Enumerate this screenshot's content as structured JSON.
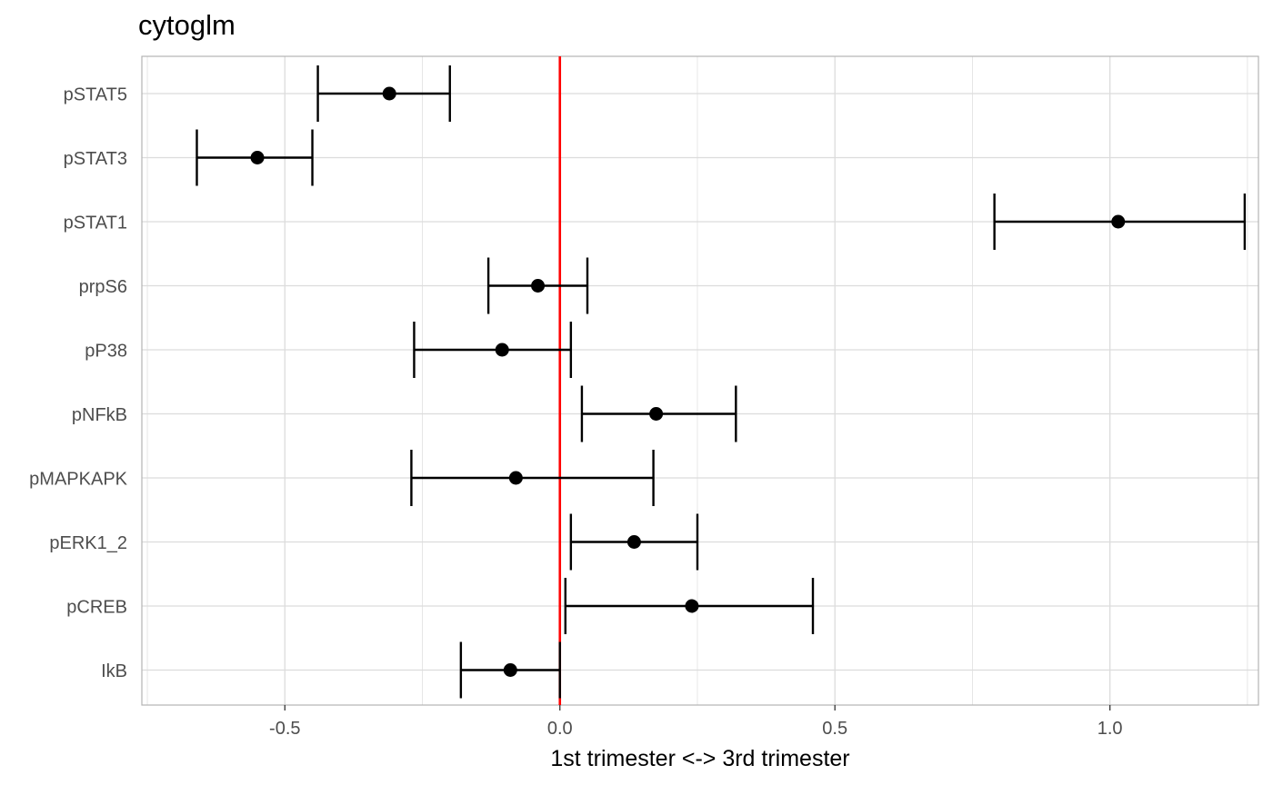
{
  "chart_data": {
    "type": "errorbar",
    "title": "cytoglm",
    "xlabel": "1st trimester <-> 3rd trimester",
    "ylabel": "",
    "xlim": [
      -0.76,
      1.27
    ],
    "xticks": [
      -0.5,
      0.0,
      0.5,
      1.0
    ],
    "xtick_labels": [
      "-0.5",
      "0.0",
      "0.5",
      "1.0"
    ],
    "reference_line": {
      "x": 0.0,
      "color": "#ff0000"
    },
    "grid": true,
    "categories": [
      "pSTAT5",
      "pSTAT3",
      "pSTAT1",
      "prpS6",
      "pP38",
      "pNFkB",
      "pMAPKAPK",
      "pERK1_2",
      "pCREB",
      "IkB"
    ],
    "estimates": [
      -0.31,
      -0.55,
      1.015,
      -0.04,
      -0.105,
      0.175,
      -0.08,
      0.135,
      0.24,
      -0.09
    ],
    "lower": [
      -0.44,
      -0.66,
      0.79,
      -0.13,
      -0.265,
      0.04,
      -0.27,
      0.02,
      0.01,
      -0.18
    ],
    "upper": [
      -0.2,
      -0.45,
      1.245,
      0.05,
      0.02,
      0.32,
      0.17,
      0.25,
      0.46,
      0.0
    ],
    "colors": {
      "points": "#000000",
      "bars": "#000000",
      "reference": "#ff0000",
      "grid": "#dcdcdc",
      "panel_border": "#b3b3b3"
    }
  }
}
